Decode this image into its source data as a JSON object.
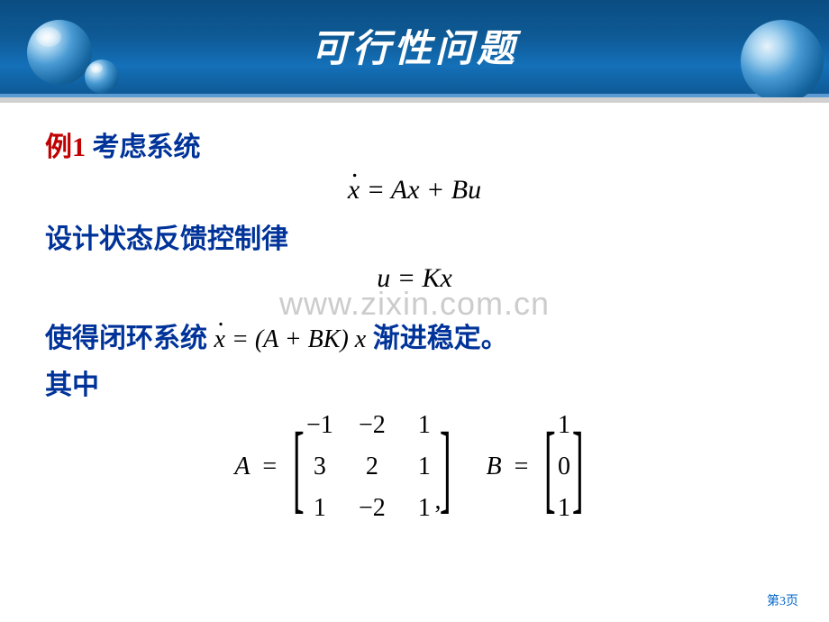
{
  "header": {
    "title": "可行性问题",
    "background_gradient": [
      "#0a4d82",
      "#0e5a96",
      "#1470b8"
    ],
    "title_color": "#ffffff",
    "title_fontsize": 42
  },
  "watermark": "www.zixin.com.cn",
  "content": {
    "example_label": "例1",
    "example_label_color": "#c00000",
    "consider_text": " 考虑系统",
    "eq1": "ẋ = Ax + Bu",
    "design_text": "设计状态反馈控制律",
    "eq2": "u = Kx",
    "closed_loop_prefix": "使得闭环系统 ",
    "eq3": "ẋ = (A + BK) x",
    "closed_loop_suffix": "   渐进稳定。",
    "where_text": "其中",
    "text_color": "#003399",
    "matrix_A": {
      "label": "A",
      "rows": [
        [
          "−1",
          "−2",
          "1"
        ],
        [
          "3",
          "2",
          "1"
        ],
        [
          "1",
          "−2",
          "1"
        ]
      ]
    },
    "matrix_B": {
      "label": "B",
      "rows": [
        [
          "1"
        ],
        [
          "0"
        ],
        [
          "1"
        ]
      ]
    }
  },
  "footer": {
    "page_label": "第3页",
    "color": "#0066cc"
  },
  "colors": {
    "background": "#ffffff",
    "watermark": "#cccccc",
    "black": "#000000"
  }
}
